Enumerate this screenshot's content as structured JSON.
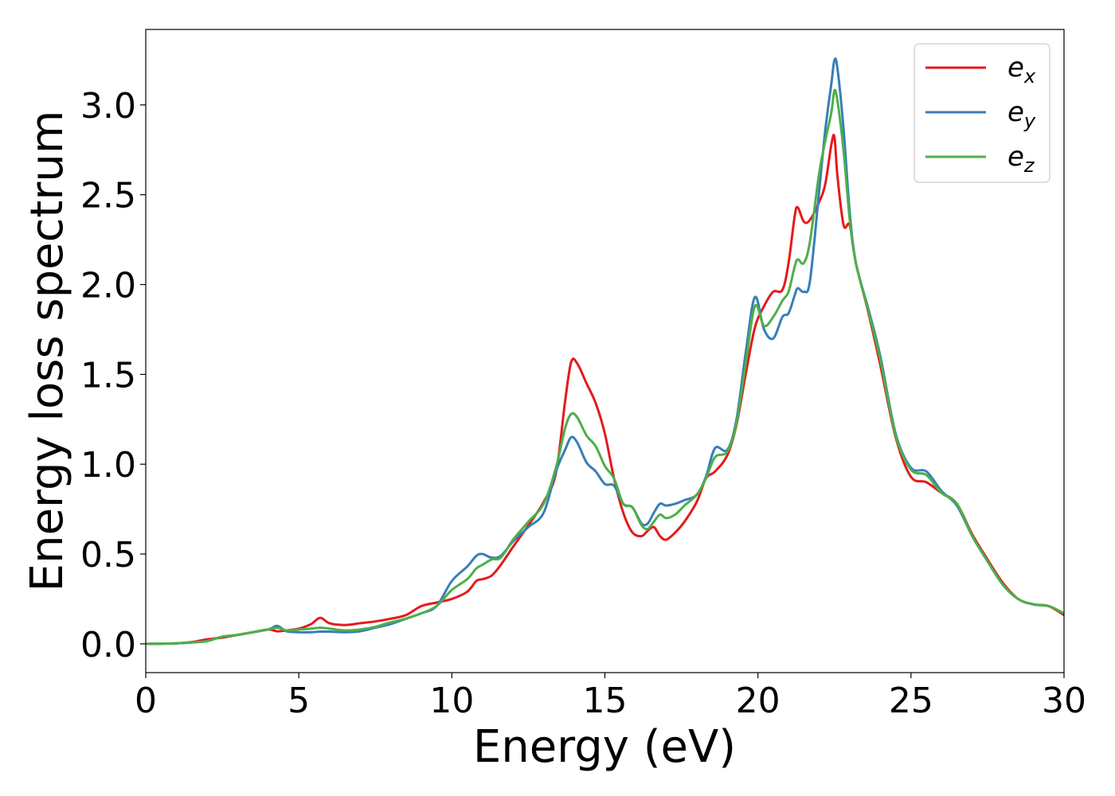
{
  "chart_data": {
    "type": "line",
    "xlabel": "Energy (eV)",
    "ylabel": "Energy loss spectrum",
    "xlim": [
      0,
      30
    ],
    "ylim": [
      -0.16,
      3.42
    ],
    "xticks": [
      "0",
      "5",
      "10",
      "15",
      "20",
      "25",
      "30"
    ],
    "yticks": [
      "0.0",
      "0.5",
      "1.0",
      "1.5",
      "2.0",
      "2.5",
      "3.0"
    ],
    "grid": false,
    "legend_position": "top-right",
    "series": [
      {
        "name": "e",
        "subscript": "x",
        "color": "#e41a1c",
        "x": [
          0,
          1,
          1.5,
          2,
          2.5,
          3,
          3.5,
          4,
          4.3,
          4.6,
          5,
          5.4,
          5.7,
          6,
          6.5,
          7,
          7.5,
          8,
          8.5,
          9,
          9.5,
          10,
          10.5,
          10.8,
          11,
          11.3,
          11.6,
          12,
          12.5,
          13,
          13.4,
          13.7,
          13.9,
          14.1,
          14.4,
          14.7,
          15,
          15.3,
          15.6,
          15.9,
          16.2,
          16.4,
          16.6,
          16.8,
          17,
          17.3,
          17.6,
          18,
          18.3,
          18.6,
          19,
          19.3,
          19.6,
          19.9,
          20.2,
          20.5,
          20.8,
          21,
          21.2,
          21.3,
          21.5,
          21.7,
          22,
          22.2,
          22.4,
          22.5,
          22.6,
          22.8,
          23,
          23.2,
          23.6,
          24,
          24.5,
          25,
          25.5,
          26,
          26.5,
          27,
          27.5,
          28,
          28.5,
          29,
          29.5,
          30
        ],
        "y": [
          0,
          0.003,
          0.01,
          0.025,
          0.035,
          0.05,
          0.065,
          0.08,
          0.07,
          0.075,
          0.085,
          0.11,
          0.145,
          0.115,
          0.105,
          0.115,
          0.125,
          0.14,
          0.16,
          0.21,
          0.23,
          0.25,
          0.29,
          0.35,
          0.36,
          0.38,
          0.44,
          0.54,
          0.66,
          0.79,
          0.95,
          1.35,
          1.57,
          1.56,
          1.45,
          1.34,
          1.17,
          0.92,
          0.73,
          0.62,
          0.6,
          0.63,
          0.65,
          0.6,
          0.58,
          0.62,
          0.68,
          0.79,
          0.92,
          0.96,
          1.05,
          1.22,
          1.5,
          1.76,
          1.88,
          1.96,
          1.97,
          2.12,
          2.38,
          2.43,
          2.35,
          2.36,
          2.46,
          2.56,
          2.78,
          2.82,
          2.6,
          2.33,
          2.33,
          2.12,
          1.85,
          1.55,
          1.15,
          0.93,
          0.9,
          0.84,
          0.78,
          0.61,
          0.47,
          0.34,
          0.25,
          0.22,
          0.21,
          0.16
        ]
      },
      {
        "name": "e",
        "subscript": "y",
        "color": "#377eb8",
        "x": [
          0,
          1,
          1.5,
          2,
          2.5,
          3,
          3.5,
          4,
          4.3,
          4.6,
          5,
          5.4,
          5.7,
          6,
          6.5,
          7,
          7.5,
          8,
          8.5,
          9,
          9.5,
          10,
          10.5,
          10.8,
          11,
          11.3,
          11.6,
          12,
          12.5,
          13,
          13.4,
          13.7,
          13.9,
          14.1,
          14.4,
          14.7,
          15,
          15.3,
          15.6,
          15.9,
          16.2,
          16.4,
          16.6,
          16.8,
          17,
          17.3,
          17.6,
          18,
          18.3,
          18.6,
          19,
          19.3,
          19.6,
          19.9,
          20.2,
          20.5,
          20.8,
          21,
          21.2,
          21.3,
          21.5,
          21.7,
          22,
          22.2,
          22.4,
          22.5,
          22.6,
          22.8,
          23,
          23.2,
          23.6,
          24,
          24.5,
          25,
          25.5,
          26,
          26.5,
          27,
          27.5,
          28,
          28.5,
          29,
          29.5,
          30
        ],
        "y": [
          0,
          0.003,
          0.008,
          0.015,
          0.04,
          0.05,
          0.065,
          0.08,
          0.1,
          0.07,
          0.065,
          0.065,
          0.068,
          0.068,
          0.065,
          0.07,
          0.09,
          0.11,
          0.14,
          0.17,
          0.21,
          0.35,
          0.43,
          0.49,
          0.5,
          0.48,
          0.49,
          0.57,
          0.65,
          0.73,
          0.96,
          1.08,
          1.15,
          1.12,
          1.01,
          0.96,
          0.89,
          0.88,
          0.78,
          0.76,
          0.67,
          0.67,
          0.73,
          0.78,
          0.77,
          0.78,
          0.8,
          0.83,
          0.93,
          1.09,
          1.08,
          1.25,
          1.62,
          1.93,
          1.75,
          1.7,
          1.82,
          1.84,
          1.94,
          1.98,
          1.96,
          2.02,
          2.52,
          2.86,
          3.12,
          3.25,
          3.2,
          2.86,
          2.4,
          2.12,
          1.87,
          1.6,
          1.17,
          0.98,
          0.96,
          0.85,
          0.77,
          0.6,
          0.46,
          0.33,
          0.25,
          0.22,
          0.21,
          0.17
        ]
      },
      {
        "name": "e",
        "subscript": "z",
        "color": "#4daf4a",
        "x": [
          0,
          1,
          1.5,
          2,
          2.5,
          3,
          3.5,
          4,
          4.3,
          4.6,
          5,
          5.4,
          5.7,
          6,
          6.5,
          7,
          7.5,
          8,
          8.5,
          9,
          9.5,
          10,
          10.5,
          10.8,
          11,
          11.3,
          11.6,
          12,
          12.5,
          13,
          13.4,
          13.7,
          13.9,
          14.1,
          14.4,
          14.7,
          15,
          15.3,
          15.6,
          15.9,
          16.2,
          16.4,
          16.6,
          16.8,
          17,
          17.3,
          17.6,
          18,
          18.3,
          18.6,
          19,
          19.3,
          19.6,
          19.9,
          20.2,
          20.5,
          20.8,
          21,
          21.2,
          21.3,
          21.5,
          21.7,
          22,
          22.2,
          22.4,
          22.5,
          22.6,
          22.8,
          23,
          23.2,
          23.6,
          24,
          24.5,
          25,
          25.5,
          26,
          26.5,
          27,
          27.5,
          28,
          28.5,
          29,
          29.5,
          30
        ],
        "y": [
          0,
          0.003,
          0.008,
          0.015,
          0.04,
          0.05,
          0.065,
          0.08,
          0.09,
          0.075,
          0.08,
          0.085,
          0.09,
          0.085,
          0.075,
          0.08,
          0.095,
          0.12,
          0.14,
          0.17,
          0.21,
          0.3,
          0.36,
          0.42,
          0.44,
          0.47,
          0.48,
          0.58,
          0.68,
          0.78,
          0.98,
          1.2,
          1.28,
          1.26,
          1.16,
          1.1,
          0.99,
          0.92,
          0.78,
          0.76,
          0.66,
          0.64,
          0.68,
          0.72,
          0.7,
          0.72,
          0.77,
          0.83,
          0.92,
          1.04,
          1.07,
          1.23,
          1.56,
          1.88,
          1.77,
          1.82,
          1.91,
          1.96,
          2.1,
          2.14,
          2.12,
          2.24,
          2.62,
          2.8,
          2.96,
          3.08,
          3.02,
          2.74,
          2.36,
          2.12,
          1.86,
          1.58,
          1.16,
          0.97,
          0.94,
          0.84,
          0.78,
          0.6,
          0.46,
          0.33,
          0.25,
          0.22,
          0.21,
          0.17
        ]
      }
    ]
  }
}
